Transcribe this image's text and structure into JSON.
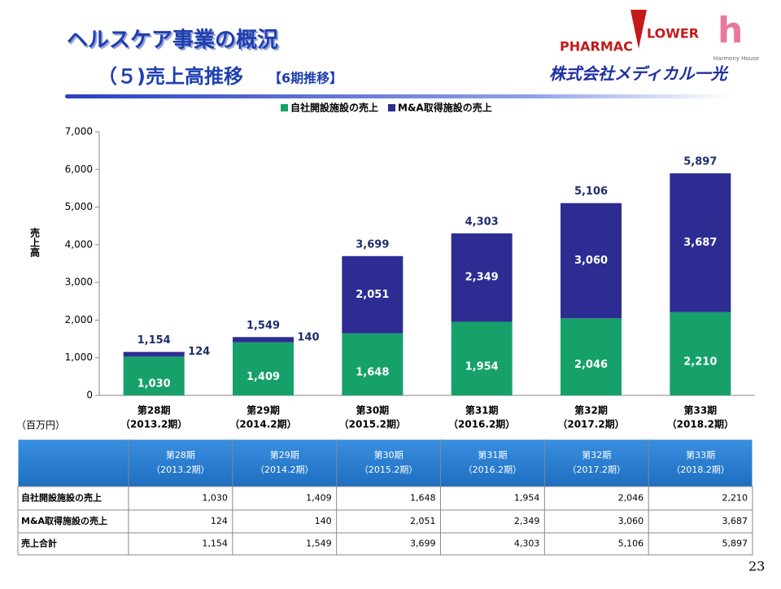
{
  "header": {
    "title": "ヘルスケア事業の概況",
    "subtitle": "（５)売上高推移",
    "subtitle_note": "【6期推移】"
  },
  "logo": {
    "brand_left": "PHARMAC",
    "brand_right": "LOWER",
    "harmony": "Harmony House",
    "company": "株式会社メディカル一光"
  },
  "chart_data": {
    "type": "stacked_bar",
    "y_label": "売上高",
    "unit": "（百万円）",
    "categories": [
      "第28期",
      "第29期",
      "第30期",
      "第31期",
      "第32期",
      "第33期"
    ],
    "periods": [
      "（2013.2期）",
      "（2014.2期）",
      "（2015.2期）",
      "（2016.2期）",
      "（2017.2期）",
      "（2018.2期）"
    ],
    "series": [
      {
        "name": "自社開設施設の売上",
        "color": "#16a06a",
        "values": [
          1030,
          1409,
          1648,
          1954,
          2046,
          2210
        ],
        "value_labels": [
          "1,030",
          "1,409",
          "1,648",
          "1,954",
          "2,046",
          "2,210"
        ]
      },
      {
        "name": "M&A取得施設の売上",
        "color": "#2c2c92",
        "values": [
          124,
          140,
          2051,
          2349,
          3060,
          3687
        ],
        "value_labels": [
          "124",
          "140",
          "2,051",
          "2,349",
          "3,060",
          "3,687"
        ]
      }
    ],
    "totals": {
      "values": [
        1154,
        1549,
        3699,
        4303,
        5106,
        5897
      ],
      "value_labels": [
        "1,154",
        "1,549",
        "3,699",
        "4,303",
        "5,106",
        "5,897"
      ]
    },
    "ylim": [
      0,
      7000
    ],
    "yticks": [
      0,
      {
        "value": 1000,
        "label": "1,000"
      },
      {
        "value": 2000,
        "label": "2,000"
      },
      {
        "value": 3000,
        "label": "3,000"
      },
      {
        "value": 4000,
        "label": "4,000"
      },
      {
        "value": 5000,
        "label": "5,000"
      },
      {
        "value": 6000,
        "label": "6,000"
      },
      {
        "value": 7000,
        "label": "7,000"
      }
    ],
    "legend": "top"
  },
  "table": {
    "columns": [
      [
        "第28期",
        "（2013.2期）"
      ],
      [
        "第29期",
        "（2014.2期）"
      ],
      [
        "第30期",
        "（2015.2期）"
      ],
      [
        "第31期",
        "（2016.2期）"
      ],
      [
        "第32期",
        "（2017.2期）"
      ],
      [
        "第33期",
        "（2018.2期）"
      ]
    ],
    "rows": [
      [
        "自社開設施設の売上",
        "1,030",
        "1,409",
        "1,648",
        "1,954",
        "2,046",
        "2,210"
      ],
      [
        "M&A取得施設の売上",
        "124",
        "140",
        "2,051",
        "2,349",
        "3,060",
        "3,687"
      ],
      [
        "売上合計",
        "1,154",
        "1,549",
        "3,699",
        "4,303",
        "5,106",
        "5,897"
      ]
    ]
  },
  "page_number": "23"
}
